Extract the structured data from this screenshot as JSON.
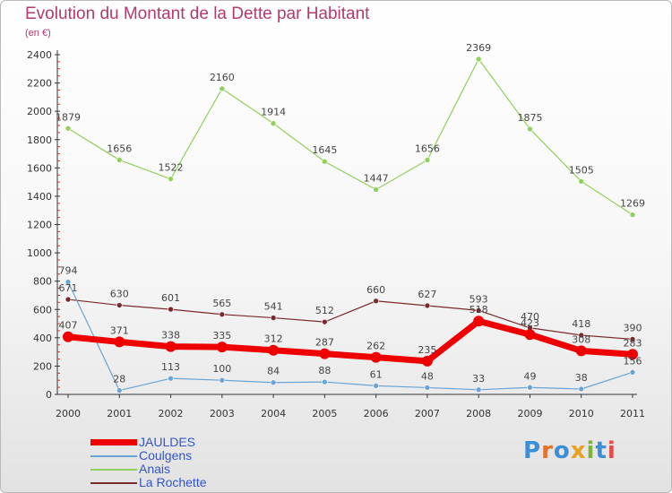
{
  "title": "Evolution du Montant de la Dette par Habitant",
  "subtitle": "(en €)",
  "logo": {
    "letters": [
      "P",
      "r",
      "o",
      "x",
      "i",
      "t",
      "i"
    ],
    "colors": [
      "#3a8fd6",
      "#e8702a",
      "#3a8fd6",
      "#e8a020",
      "#7cb53a",
      "#3a8fd6",
      "#e84a4a"
    ]
  },
  "chart_data": {
    "type": "line",
    "title": "Evolution du Montant de la Dette par Habitant",
    "subtitle": "(en €)",
    "xlabel": "",
    "ylabel": "",
    "x": [
      "2000",
      "2001",
      "2002",
      "2003",
      "2004",
      "2005",
      "2006",
      "2007",
      "2008",
      "2009",
      "2010",
      "2011"
    ],
    "ylim": [
      0,
      2400
    ],
    "yticks": [
      0,
      200,
      400,
      600,
      800,
      1000,
      1200,
      1400,
      1600,
      1800,
      2000,
      2200,
      2400
    ],
    "yticks_labels": [
      "0",
      "200",
      "400",
      "600",
      "800",
      "1000",
      "1200",
      "1400",
      "1600",
      "1800",
      "2000",
      "2200",
      "2400"
    ],
    "grid": false,
    "legend_position": "bottom-left",
    "series": [
      {
        "name": "JAULDES",
        "color": "#ee0000",
        "line_width": 7,
        "marker_radius": 6,
        "values": [
          407,
          371,
          338,
          335,
          312,
          287,
          262,
          235,
          518,
          423,
          308,
          283
        ],
        "labels": [
          "407",
          "371",
          "338",
          "335",
          "312",
          "287",
          "262",
          "235",
          "518",
          "423",
          "308",
          "283"
        ]
      },
      {
        "name": "Coulgens",
        "color": "#6aa3d5",
        "line_width": 1.2,
        "marker_radius": 3,
        "values": [
          794,
          28,
          113,
          100,
          84,
          88,
          61,
          48,
          33,
          49,
          38,
          156
        ],
        "labels": [
          "794",
          "28",
          "113",
          "100",
          "84",
          "88",
          "61",
          "48",
          "33",
          "49",
          "38",
          "156"
        ]
      },
      {
        "name": "Anais",
        "color": "#8fd15a",
        "line_width": 1.2,
        "marker_radius": 3,
        "values": [
          1879,
          1656,
          1522,
          2160,
          1914,
          1645,
          1447,
          1656,
          2369,
          1875,
          1505,
          1269
        ],
        "labels": [
          "1879",
          "1656",
          "1522",
          "2160",
          "1914",
          "1645",
          "1447",
          "1656",
          "2369",
          "1875",
          "1505",
          "1269"
        ]
      },
      {
        "name": "La Rochette",
        "color": "#7a2a2a",
        "line_width": 1.2,
        "marker_radius": 3,
        "values": [
          671,
          630,
          601,
          565,
          541,
          512,
          660,
          627,
          593,
          470,
          418,
          390
        ],
        "labels": [
          "671",
          "630",
          "601",
          "565",
          "541",
          "512",
          "660",
          "627",
          "593",
          "470",
          "418",
          "390"
        ]
      }
    ]
  }
}
